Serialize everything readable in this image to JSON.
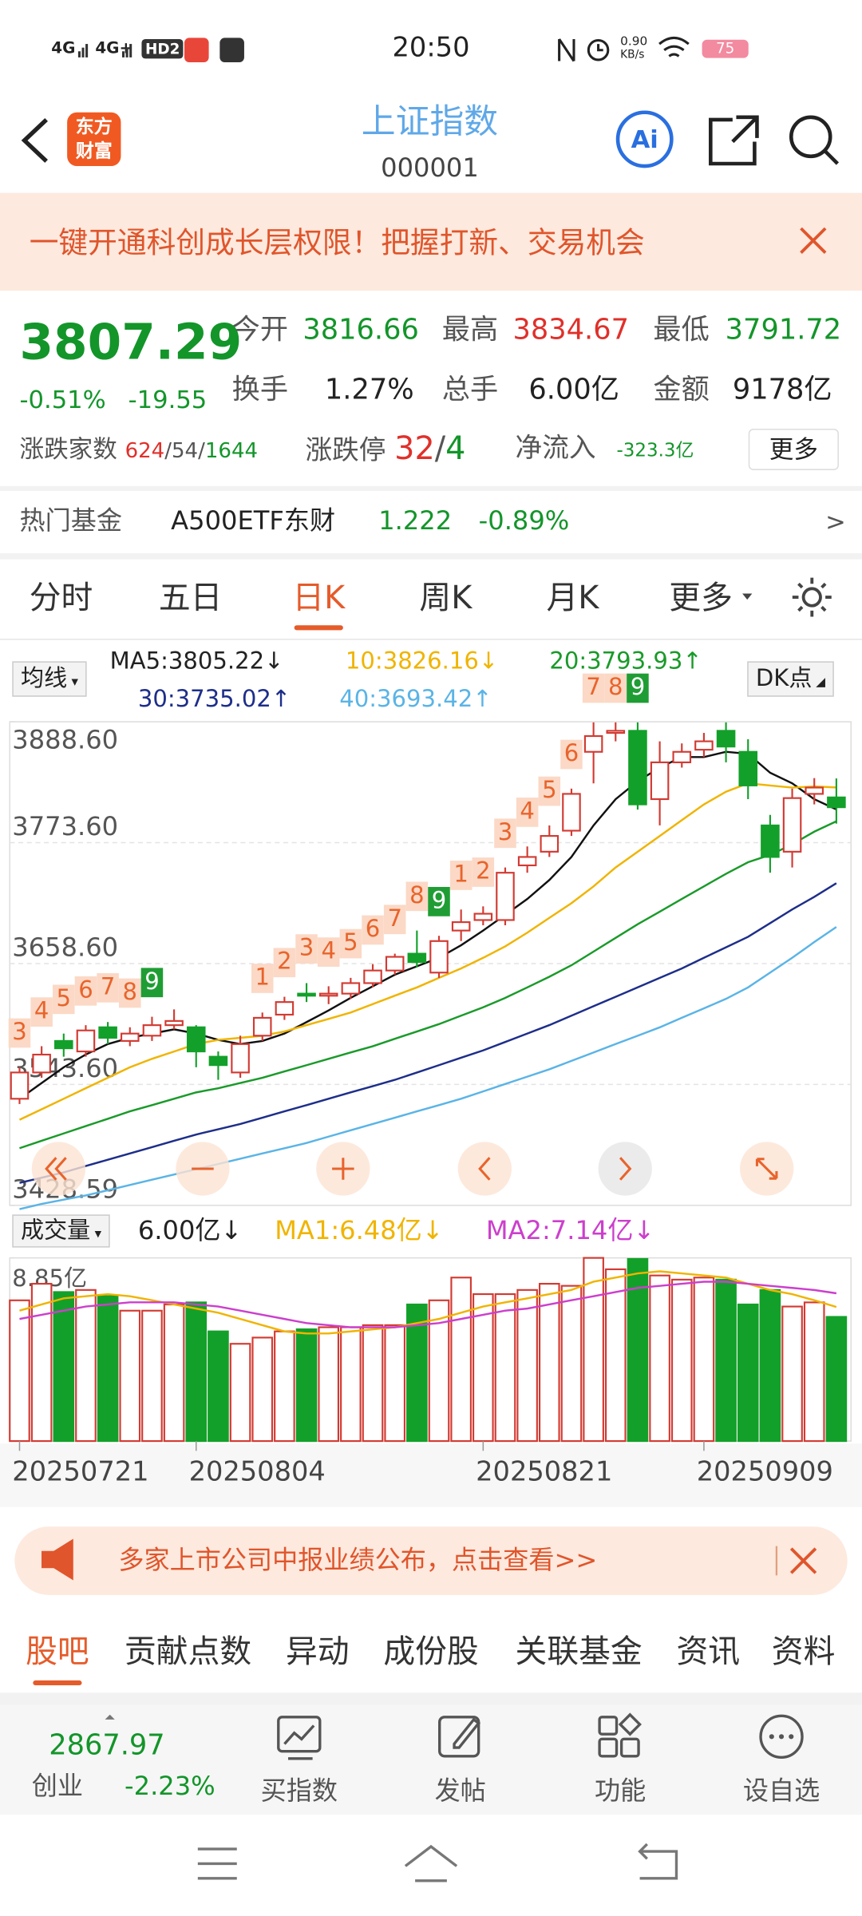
{
  "status_bar": {
    "net1": "4G",
    "net2": "4G+",
    "hd": "HD2",
    "time": "20:50",
    "speed": "0.90",
    "speed_unit": "KB/s",
    "battery": "75"
  },
  "header": {
    "logo": [
      "东方",
      "财富"
    ],
    "title": "上证指数",
    "code": "000001",
    "ai": "Ai"
  },
  "banner": {
    "text": "一键开通科创成长层权限！把握打新、交易机会"
  },
  "quote": {
    "price": "3807.29",
    "change_pct": "-0.51%",
    "change": "-19.55",
    "stats": [
      [
        "今开",
        "3816.66"
      ],
      [
        "最高",
        "3834.67"
      ],
      [
        "最低",
        "3791.72"
      ],
      [
        "换手",
        "1.27%"
      ],
      [
        "总手",
        "6.00亿"
      ],
      [
        "金额",
        "9178亿"
      ]
    ],
    "updown_label": "涨跌家数",
    "updown": [
      "624",
      "/",
      "54",
      "/",
      "1644"
    ],
    "limit_label": "涨跌停",
    "limit": [
      "32",
      "/",
      "4"
    ],
    "inflow_label": "净流入",
    "inflow": "-323.3亿",
    "more": "更多"
  },
  "hot_fund": {
    "label": "热门基金",
    "name": "A500ETF东财",
    "price": "1.222",
    "change": "-0.89%",
    "arrow": ">"
  },
  "tabs": {
    "items": [
      "分时",
      "五日",
      "日K",
      "周K",
      "月K",
      "更多"
    ],
    "active": 2
  },
  "ma_legend": {
    "label": "均线",
    "items": [
      "MA5:3805.22↓",
      "10:3826.16↓",
      "20:3793.93↑",
      "30:3735.02↑",
      "40:3693.42↑"
    ],
    "dk": "DK点"
  },
  "kline": {
    "ylim": [
      3428.59,
      3888.6
    ],
    "yticks": [
      {
        "value": 3888.6,
        "label": "3888.60"
      },
      {
        "value": 3773.6,
        "label": "3773.60"
      },
      {
        "value": 3658.6,
        "label": "3658.60"
      },
      {
        "value": 3543.6,
        "label": "3543.60"
      },
      3428.59
    ],
    "open": [
      3530,
      3555,
      3585,
      3575,
      3598,
      3585,
      3590,
      3600,
      3598,
      3570,
      3555,
      3590,
      3610,
      3630,
      3628,
      3630,
      3640,
      3652,
      3668,
      3650,
      3690,
      3700,
      3700,
      3752,
      3765,
      3785,
      3860,
      3878,
      3880,
      3815,
      3850,
      3862,
      3880,
      3860,
      3790,
      3765,
      3820,
      3816.66
    ],
    "close": [
      3555,
      3572,
      3578,
      3595,
      3588,
      3592,
      3600,
      3604,
      3575,
      3562,
      3582,
      3607,
      3622,
      3628,
      3630,
      3640,
      3652,
      3665,
      3660,
      3680,
      3698,
      3706,
      3745,
      3760,
      3780,
      3820,
      3875,
      3880,
      3810,
      3850,
      3860,
      3870,
      3865,
      3828,
      3760,
      3816,
      3826,
      3807.29
    ],
    "high": [
      3560,
      3580,
      3592,
      3600,
      3603,
      3598,
      3608,
      3615,
      3600,
      3575,
      3590,
      3612,
      3627,
      3640,
      3637,
      3645,
      3658,
      3668,
      3690,
      3685,
      3710,
      3713,
      3750,
      3770,
      3790,
      3825,
      3888,
      3888,
      3888,
      3870,
      3868,
      3878,
      3888,
      3872,
      3800,
      3825,
      3835,
      3834.67
    ],
    "low": [
      3525,
      3550,
      3570,
      3570,
      3582,
      3580,
      3585,
      3596,
      3560,
      3548,
      3550,
      3585,
      3605,
      3622,
      3620,
      3625,
      3636,
      3648,
      3655,
      3645,
      3680,
      3695,
      3695,
      3745,
      3760,
      3780,
      3830,
      3870,
      3805,
      3790,
      3845,
      3855,
      3850,
      3815,
      3745,
      3750,
      3810,
      3791.72
    ],
    "td_labels": [
      "3",
      "4",
      "5",
      "6",
      "7",
      "8",
      "9",
      null,
      null,
      null,
      null,
      "1",
      "2",
      "3",
      "4",
      "5",
      "6",
      "7",
      "8",
      "9",
      "1",
      "2",
      "3",
      "4",
      "5",
      "6",
      "7",
      "8",
      "9",
      null,
      null,
      null,
      null,
      null,
      null,
      null,
      null,
      null
    ],
    "ma": [
      {
        "color": "#111111",
        "values": [
          3530,
          3545,
          3560,
          3572,
          3582,
          3588,
          3592,
          3596,
          3592,
          3586,
          3582,
          3585,
          3592,
          3603,
          3614,
          3626,
          3637,
          3648,
          3656,
          3664,
          3676,
          3690,
          3705,
          3720,
          3738,
          3760,
          3790,
          3815,
          3832,
          3845,
          3855,
          3855,
          3860,
          3858,
          3840,
          3830,
          3815,
          3805.22
        ]
      },
      {
        "color": "#f0b400",
        "values": [
          3510,
          3520,
          3530,
          3540,
          3550,
          3560,
          3568,
          3575,
          3582,
          3586,
          3588,
          3590,
          3594,
          3600,
          3606,
          3612,
          3620,
          3628,
          3636,
          3645,
          3654,
          3664,
          3675,
          3688,
          3702,
          3716,
          3732,
          3750,
          3765,
          3780,
          3795,
          3810,
          3822,
          3830,
          3828,
          3826,
          3827,
          3826.16
        ]
      },
      {
        "color": "#1a9a2a",
        "values": [
          3483,
          3490,
          3497,
          3504,
          3511,
          3518,
          3524,
          3530,
          3536,
          3540,
          3545,
          3550,
          3556,
          3562,
          3568,
          3574,
          3580,
          3587,
          3594,
          3601,
          3609,
          3617,
          3626,
          3636,
          3646,
          3657,
          3670,
          3683,
          3696,
          3708,
          3720,
          3732,
          3744,
          3755,
          3762,
          3772,
          3784,
          3793.93
        ]
      },
      {
        "color": "#1d2e8a",
        "values": [
          3450,
          3455,
          3460,
          3466,
          3472,
          3478,
          3484,
          3490,
          3496,
          3501,
          3506,
          3512,
          3518,
          3524,
          3530,
          3536,
          3542,
          3548,
          3555,
          3562,
          3569,
          3576,
          3584,
          3592,
          3600,
          3609,
          3618,
          3627,
          3636,
          3645,
          3654,
          3664,
          3674,
          3684,
          3697,
          3710,
          3722,
          3735.02
        ]
      },
      {
        "color": "#5ab4e6",
        "values": [
          3425,
          3430,
          3434,
          3438,
          3443,
          3448,
          3453,
          3458,
          3463,
          3468,
          3473,
          3478,
          3483,
          3488,
          3494,
          3500,
          3506,
          3512,
          3518,
          3524,
          3530,
          3537,
          3544,
          3551,
          3558,
          3566,
          3574,
          3582,
          3590,
          3598,
          3607,
          3616,
          3625,
          3636,
          3650,
          3664,
          3679,
          3693.42
        ]
      }
    ]
  },
  "volume": {
    "label": "成交量",
    "current": "6.00亿↓",
    "ma1": "MA1:6.48亿↓",
    "ma2": "MA2:7.14亿↓",
    "vlim": [
      0,
      8.85
    ],
    "vtick": {
      "value": 8.85,
      "label": "8.85亿"
    },
    "values": [
      6.8,
      7.6,
      7.2,
      7.3,
      7.0,
      6.3,
      6.3,
      6.6,
      6.7,
      5.3,
      4.7,
      5.0,
      5.3,
      5.4,
      5.5,
      5.5,
      5.6,
      5.6,
      6.6,
      6.8,
      7.9,
      7.1,
      7.1,
      7.3,
      7.6,
      7.5,
      8.85,
      8.3,
      8.8,
      8.0,
      7.8,
      7.9,
      7.8,
      6.6,
      7.3,
      6.5,
      6.7,
      6.0
    ],
    "ma": [
      {
        "color": "#f0b400",
        "values": [
          6.3,
          6.6,
          6.9,
          7.0,
          7.1,
          7.0,
          6.8,
          6.6,
          6.4,
          6.2,
          5.9,
          5.6,
          5.3,
          5.2,
          5.2,
          5.3,
          5.4,
          5.5,
          5.7,
          5.9,
          6.2,
          6.5,
          6.7,
          6.9,
          7.1,
          7.3,
          7.7,
          7.9,
          8.1,
          8.2,
          8.1,
          8.0,
          7.9,
          7.6,
          7.3,
          7.1,
          6.8,
          6.48
        ]
      },
      {
        "color": "#cc3fcc",
        "values": [
          5.9,
          6.1,
          6.3,
          6.5,
          6.6,
          6.7,
          6.7,
          6.7,
          6.6,
          6.5,
          6.3,
          6.1,
          5.9,
          5.7,
          5.6,
          5.5,
          5.5,
          5.5,
          5.6,
          5.7,
          5.9,
          6.1,
          6.3,
          6.4,
          6.6,
          6.8,
          7.0,
          7.2,
          7.4,
          7.5,
          7.6,
          7.7,
          7.7,
          7.6,
          7.5,
          7.4,
          7.3,
          7.14
        ]
      }
    ],
    "dates": [
      "20250721",
      null,
      null,
      null,
      null,
      null,
      null,
      null,
      "20250804",
      null,
      null,
      null,
      null,
      null,
      null,
      null,
      null,
      null,
      null,
      null,
      null,
      "20250821",
      null,
      null,
      null,
      null,
      null,
      null,
      null,
      null,
      null,
      "20250909",
      null,
      null,
      null,
      null,
      null,
      null
    ]
  },
  "notice": {
    "text": "多家上市公司中报业绩公布，点击查看>>"
  },
  "section_tabs": {
    "items": [
      "股吧",
      "贡献点数",
      "异动",
      "成份股",
      "关联基金",
      "资讯",
      "资料"
    ],
    "active": 0
  },
  "bottom_bar": {
    "index_value": "2867.97",
    "index_name": "创业",
    "index_change": "-2.23%",
    "actions": [
      "买指数",
      "发帖",
      "功能",
      "设自选"
    ]
  }
}
